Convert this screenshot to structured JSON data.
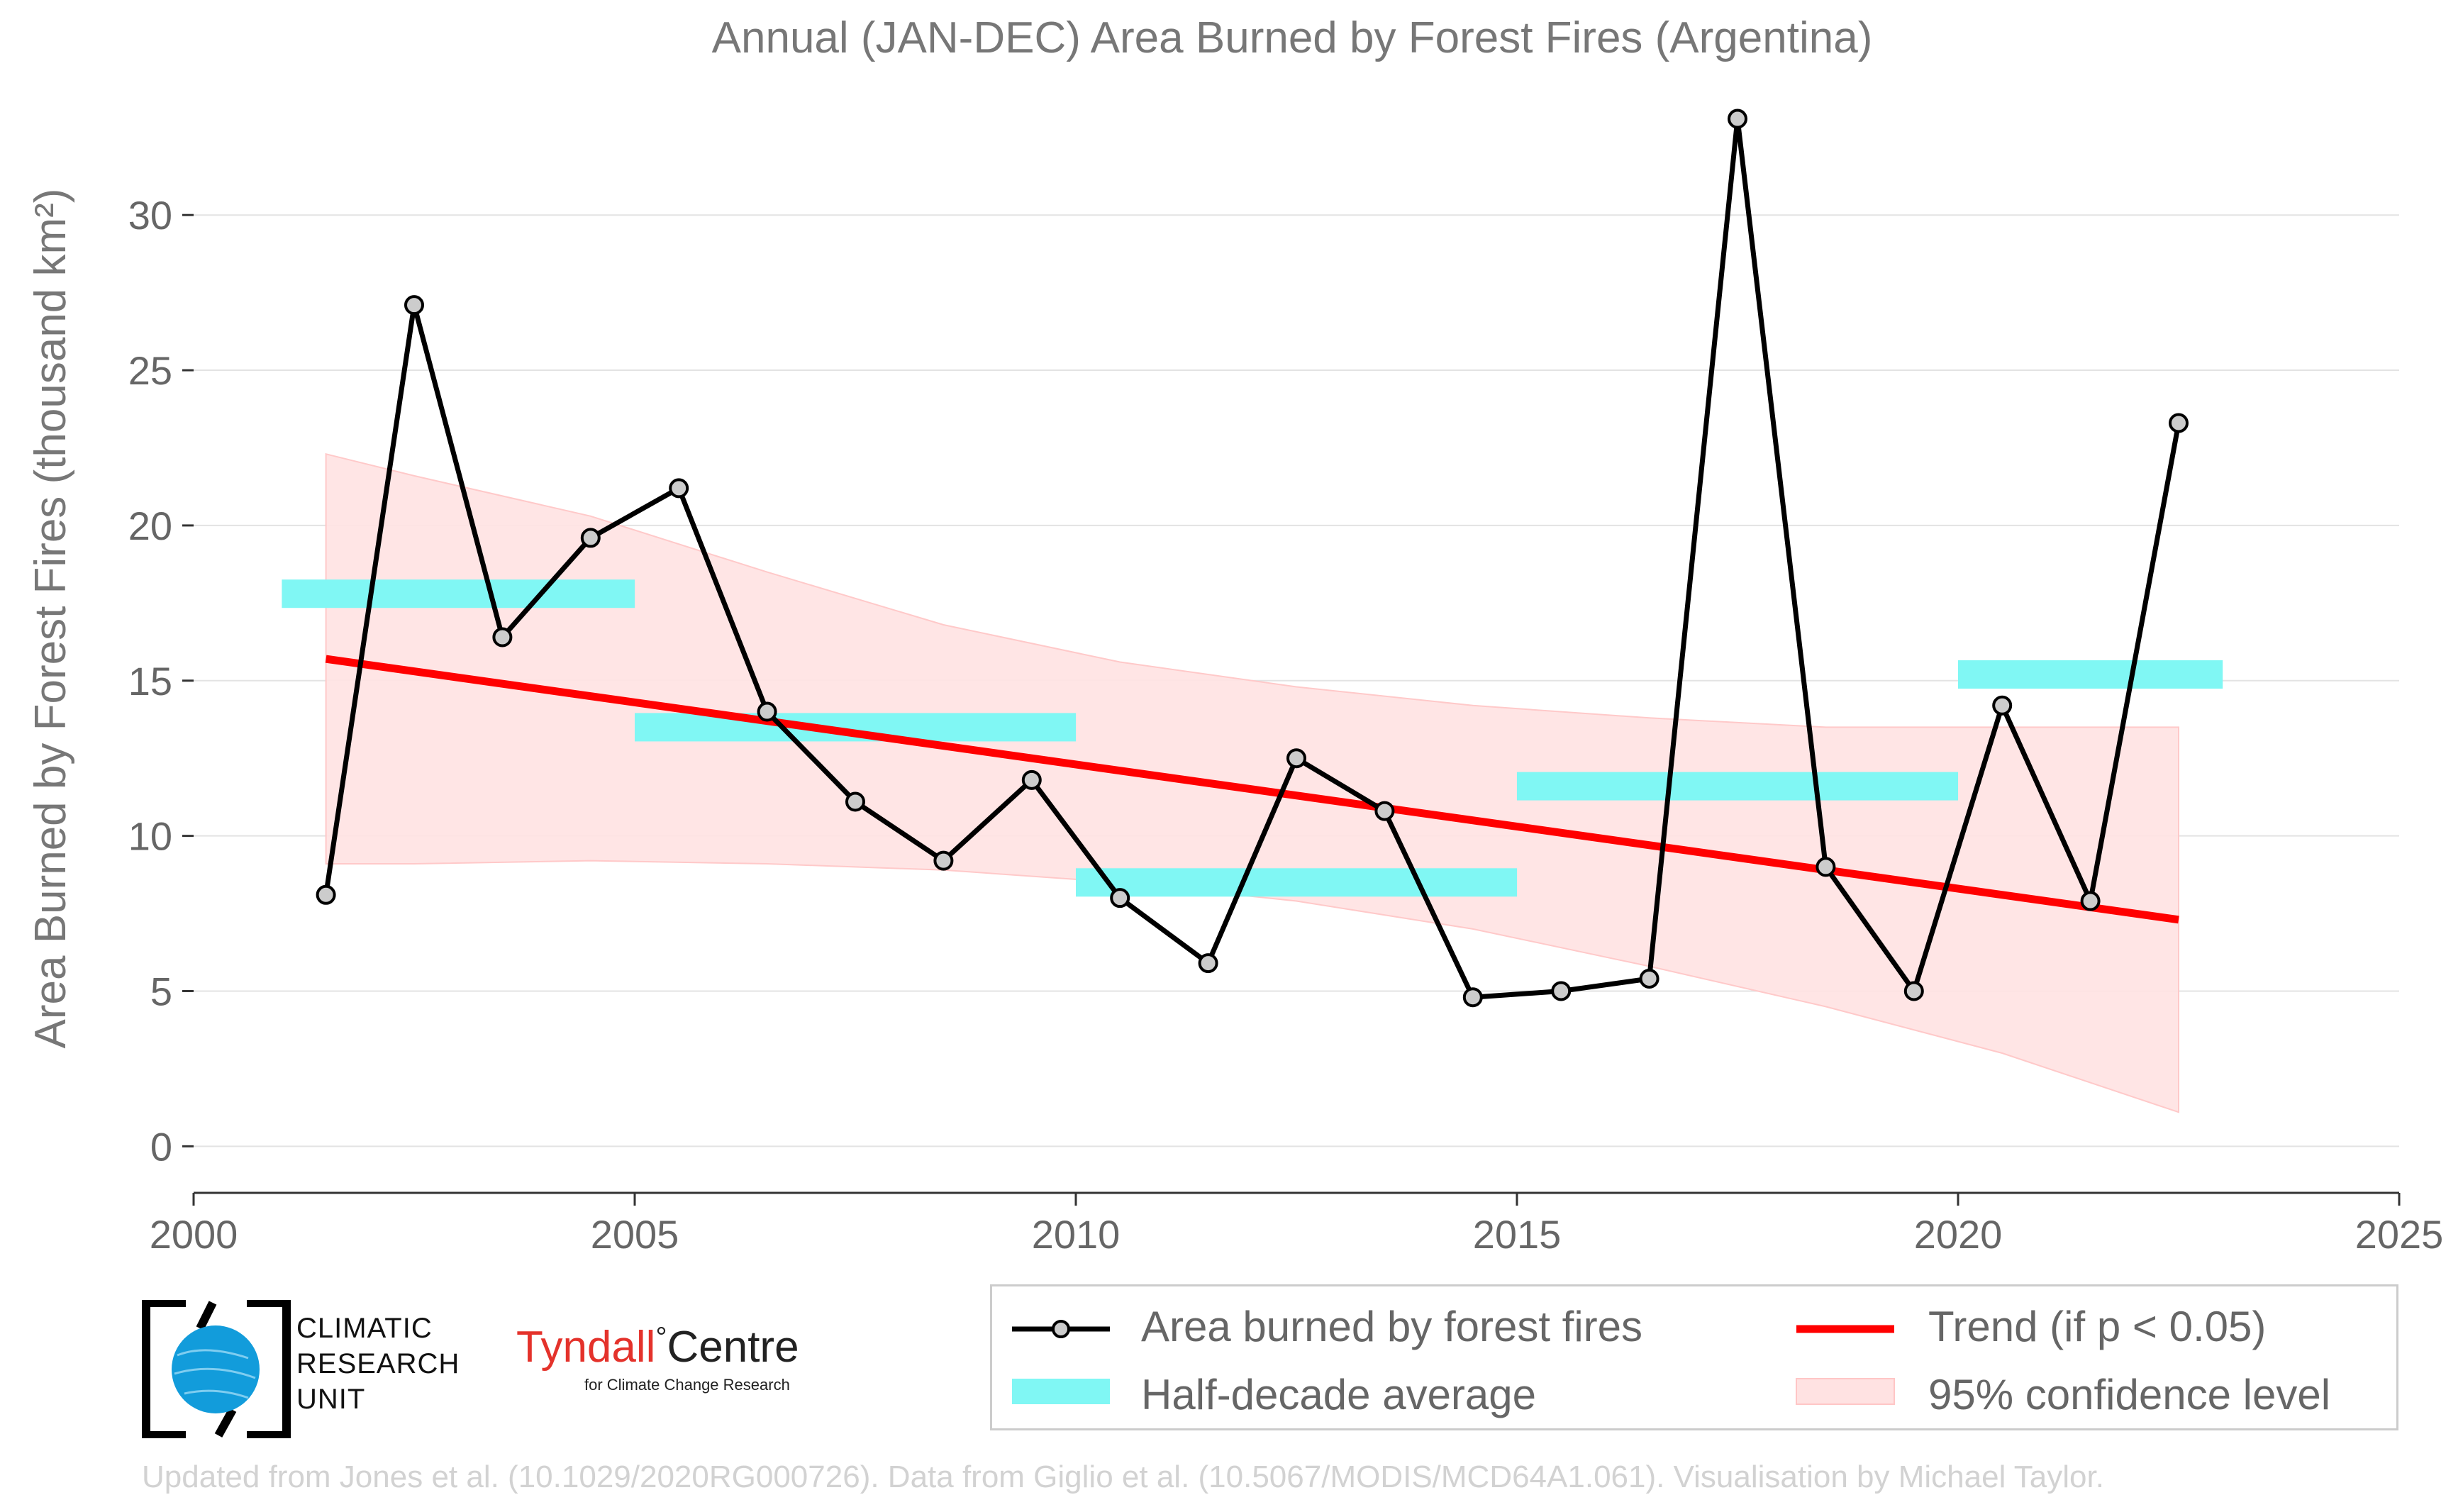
{
  "chart_data": {
    "type": "line",
    "title": "Annual (JAN-DEC) Area Burned by Forest Fires (Argentina)",
    "ylabel": "Area Burned by Forest Fires (thousand km²)",
    "xlabel": "",
    "xlim": [
      2000,
      2025
    ],
    "ylim": [
      -1.5,
      33.5
    ],
    "x_ticks": [
      2000,
      2005,
      2010,
      2015,
      2020,
      2025
    ],
    "y_ticks": [
      0,
      5,
      10,
      15,
      20,
      25,
      30
    ],
    "grid": "horizontal",
    "series": [
      {
        "name": "Area burned by forest fires",
        "type": "line",
        "color": "#000000",
        "marker_fill": "#cccccc",
        "x": [
          2001.5,
          2002.5,
          2003.5,
          2004.5,
          2005.5,
          2006.5,
          2007.5,
          2008.5,
          2009.5,
          2010.5,
          2011.5,
          2012.5,
          2013.5,
          2014.5,
          2015.5,
          2016.5,
          2017.5,
          2018.5,
          2019.5,
          2020.5,
          2021.5,
          2022.5
        ],
        "y": [
          8.1,
          27.1,
          16.4,
          19.6,
          21.2,
          14.0,
          11.1,
          9.2,
          11.8,
          8.0,
          5.9,
          12.5,
          10.8,
          4.8,
          5.0,
          5.4,
          33.1,
          9.0,
          5.0,
          14.2,
          7.9,
          23.3
        ]
      },
      {
        "name": "Half-decade average",
        "type": "step",
        "color": "#80f7f4",
        "segments": [
          {
            "x": [
              2001,
              2005
            ],
            "y": 17.8
          },
          {
            "x": [
              2005,
              2010
            ],
            "y": 13.5
          },
          {
            "x": [
              2010,
              2015
            ],
            "y": 8.5
          },
          {
            "x": [
              2015,
              2020
            ],
            "y": 11.6
          },
          {
            "x": [
              2020,
              2023
            ],
            "y": 15.2
          }
        ]
      },
      {
        "name": "Trend (if p < 0.05)",
        "type": "line",
        "color": "#ff0000",
        "x": [
          2001.5,
          2022.5
        ],
        "y": [
          15.7,
          7.3
        ]
      },
      {
        "name": "95% confidence level",
        "type": "area",
        "color": "#ffe2e2",
        "x": [
          2001.5,
          2002.5,
          2004.5,
          2006.5,
          2008.5,
          2010.5,
          2012.5,
          2014.5,
          2016.5,
          2018.5,
          2020.5,
          2022.5
        ],
        "upper": [
          22.3,
          21.6,
          20.3,
          18.5,
          16.8,
          15.6,
          14.8,
          14.2,
          13.8,
          13.5,
          13.5,
          13.5
        ],
        "lower": [
          9.1,
          9.1,
          9.2,
          9.1,
          8.9,
          8.5,
          7.9,
          7.0,
          5.8,
          4.5,
          3.0,
          1.1
        ]
      }
    ],
    "legend": {
      "placement": "bottom-right",
      "entries": [
        "Area burned by forest fires",
        "Trend (if p < 0.05)",
        "Half-decade average",
        "95% confidence level"
      ]
    }
  },
  "logos": {
    "cru_lines": [
      "CLIMATIC",
      "RESEARCH",
      "UNIT"
    ],
    "tyndall_red": "Tyndall",
    "tyndall_degree": "°",
    "tyndall_black": "Centre",
    "tyndall_sub": "for Climate Change Research"
  },
  "credit": "Updated from Jones et al. (10.1029/2020RG000726). Data from Giglio et al. (10.5067/MODIS/MCD64A1.061). Visualisation by Michael Taylor."
}
